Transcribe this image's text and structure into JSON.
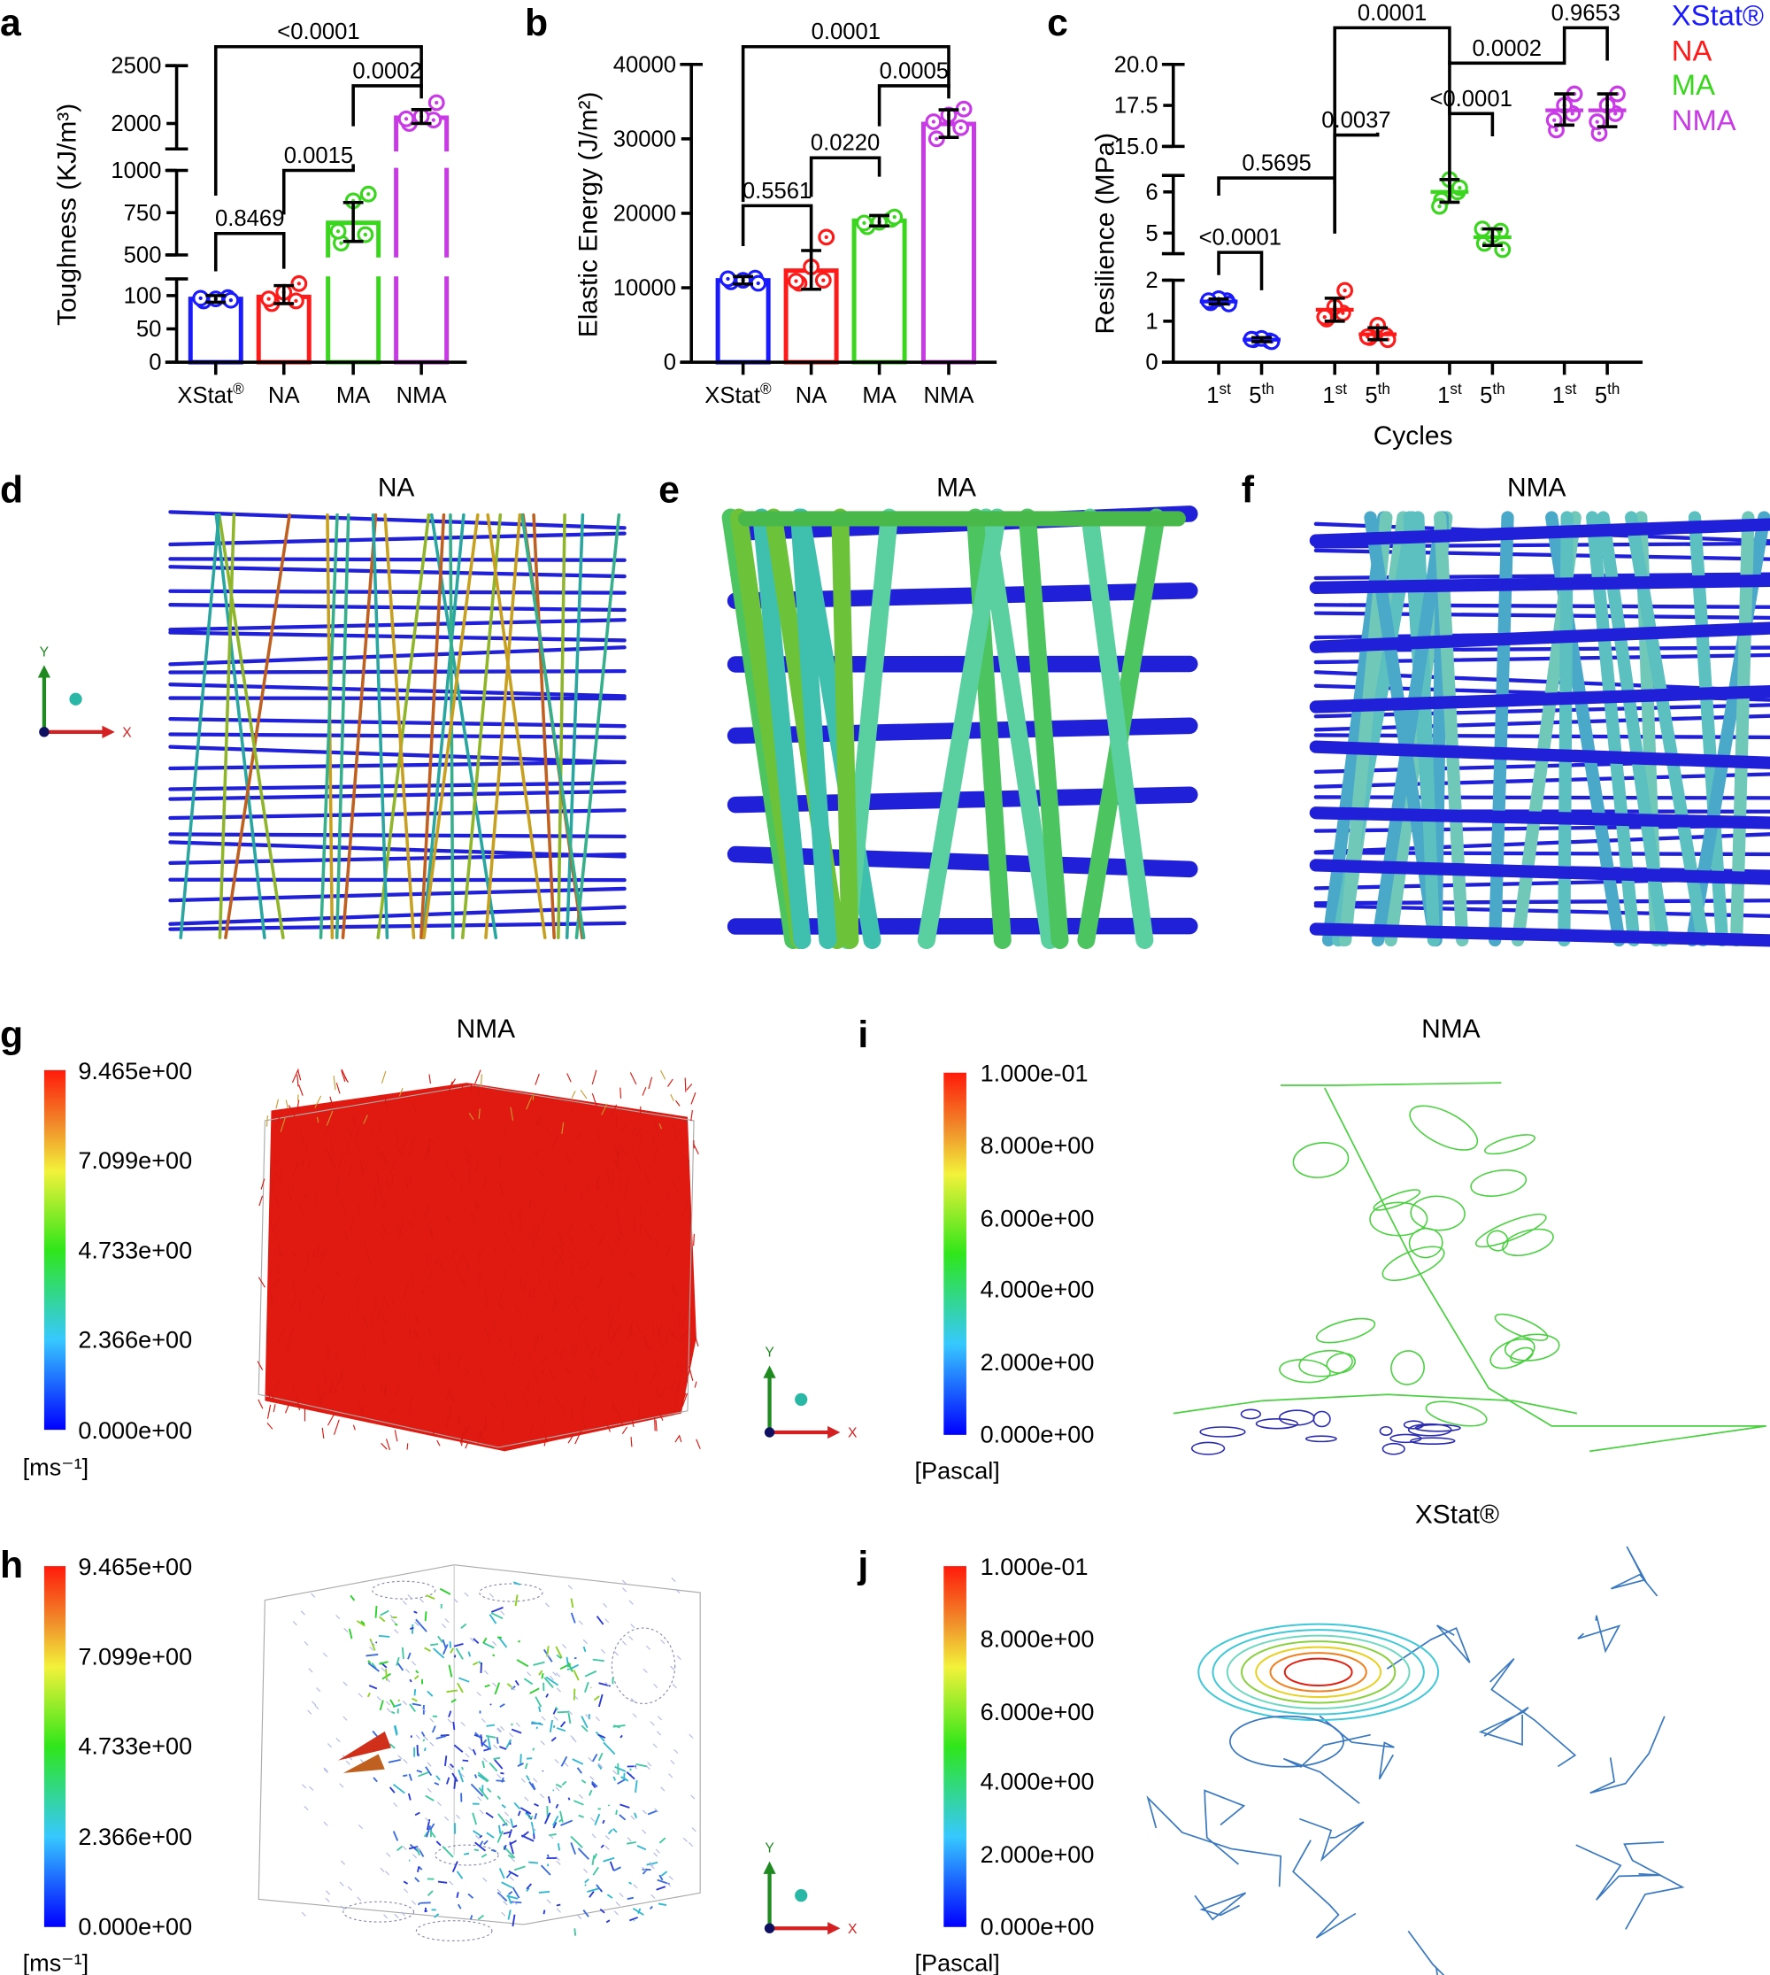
{
  "panel_labels": [
    "a",
    "b",
    "c",
    "d",
    "e",
    "f",
    "g",
    "h",
    "i",
    "j"
  ],
  "colors": {
    "XStat": "#1a1aff",
    "NA": "#ff1a1a",
    "MA": "#3ad61e",
    "NMA": "#c93ae6"
  },
  "legend": [
    {
      "label": "XStat®",
      "color": "#1a1aff"
    },
    {
      "label": "NA",
      "color": "#ff1a1a"
    },
    {
      "label": "MA",
      "color": "#3ad61e"
    },
    {
      "label": "NMA",
      "color": "#c93ae6"
    }
  ],
  "chart_data": [
    {
      "panel": "a",
      "type": "bar",
      "ylabel": "Toughness (KJ/m³)",
      "xlabel": "",
      "categories": [
        "XStat®",
        "NA",
        "MA",
        "NMA"
      ],
      "values": [
        95,
        98,
        690,
        2050
      ],
      "error_low": [
        90,
        88,
        580,
        2000
      ],
      "error_high": [
        100,
        115,
        810,
        2120
      ],
      "points": [
        [
          92,
          97,
          95,
          93,
          96
        ],
        [
          88,
          92,
          105,
          118,
          95
        ],
        [
          570,
          620,
          820,
          860,
          640
        ],
        [
          2000,
          2030,
          2060,
          2180,
          2040
        ]
      ],
      "y_segments": [
        [
          0,
          125
        ],
        [
          500,
          1000
        ],
        [
          1780,
          2500
        ]
      ],
      "y_ticks": [
        0,
        50,
        100,
        500,
        750,
        1000,
        2000,
        2500
      ],
      "y_tick_labels": [
        "0",
        "50",
        "100",
        "500",
        "750",
        "1000",
        "2000",
        "2500"
      ],
      "comparisons": [
        {
          "from": 0,
          "to": 3,
          "p": "<0.0001"
        },
        {
          "from": 2,
          "to": 3,
          "p": "0.0002"
        },
        {
          "from": 1,
          "to": 2,
          "p": "0.0015"
        },
        {
          "from": 0,
          "to": 1,
          "p": "0.8469"
        }
      ]
    },
    {
      "panel": "b",
      "type": "bar",
      "ylabel": "Elastic Energy (J/m²)",
      "xlabel": "",
      "categories": [
        "XStat®",
        "NA",
        "MA",
        "NMA"
      ],
      "values": [
        11000,
        12300,
        19000,
        32000
      ],
      "error_low": [
        10500,
        9800,
        18300,
        30200
      ],
      "error_high": [
        11500,
        15000,
        19700,
        33900
      ],
      "points": [
        [
          10800,
          11300,
          11000,
          10600,
          11200
        ],
        [
          10600,
          11000,
          12800,
          16800,
          10900
        ],
        [
          18200,
          19200,
          18800,
          19500,
          18700
        ],
        [
          30000,
          31500,
          33200,
          34000,
          32300
        ]
      ],
      "y_segments": [
        [
          0,
          40000
        ]
      ],
      "y_ticks": [
        0,
        10000,
        20000,
        30000,
        40000
      ],
      "y_tick_labels": [
        "0",
        "10000",
        "20000",
        "30000",
        "40000"
      ],
      "comparisons": [
        {
          "from": 0,
          "to": 3,
          "p": "0.0001"
        },
        {
          "from": 2,
          "to": 3,
          "p": "0.0005"
        },
        {
          "from": 1,
          "to": 2,
          "p": "0.0220"
        },
        {
          "from": 0,
          "to": 1,
          "p": "0.5561"
        }
      ]
    },
    {
      "panel": "c",
      "type": "scatter",
      "ylabel": "Resilience (MPa)",
      "xlabel": "Cycles",
      "categories": [
        {
          "base": "1",
          "sup": "st",
          "group": "XStat"
        },
        {
          "base": "5",
          "sup": "th",
          "group": "XStat"
        },
        {
          "base": "1",
          "sup": "st",
          "group": "NA"
        },
        {
          "base": "5",
          "sup": "th",
          "group": "NA"
        },
        {
          "base": "1",
          "sup": "st",
          "group": "MA"
        },
        {
          "base": "5",
          "sup": "th",
          "group": "MA"
        },
        {
          "base": "1",
          "sup": "st",
          "group": "NMA"
        },
        {
          "base": "5",
          "sup": "th",
          "group": "NMA"
        }
      ],
      "values": [
        1.48,
        0.55,
        1.28,
        0.68,
        6.0,
        4.9,
        17.2,
        17.2
      ],
      "error_low": [
        1.42,
        0.5,
        1.0,
        0.55,
        5.75,
        4.7,
        16.3,
        16.2
      ],
      "error_high": [
        1.54,
        0.6,
        1.56,
        0.84,
        6.3,
        5.1,
        18.2,
        18.2
      ],
      "points": [
        [
          1.45,
          1.5,
          1.55,
          1.42,
          1.5
        ],
        [
          0.55,
          0.52,
          0.58,
          0.5,
          0.56
        ],
        [
          1.05,
          1.2,
          1.35,
          1.75,
          1.1
        ],
        [
          0.6,
          0.65,
          0.9,
          0.55,
          0.62
        ],
        [
          5.8,
          6.0,
          6.3,
          6.1,
          5.65
        ],
        [
          4.75,
          5.05,
          4.95,
          4.6,
          5.1
        ],
        [
          16.0,
          17.0,
          17.5,
          18.2,
          16.6
        ],
        [
          15.8,
          17.0,
          17.5,
          18.2,
          16.5
        ]
      ],
      "y_segments": [
        [
          0,
          2
        ],
        [
          4.5,
          6.4
        ],
        [
          15,
          20
        ]
      ],
      "y_ticks": [
        0,
        1,
        2,
        5,
        6,
        15,
        17.5,
        20
      ],
      "y_tick_labels": [
        "0",
        "1",
        "2",
        "5",
        "6",
        "15.0",
        "17.5",
        "20.0"
      ],
      "comparisons": [
        {
          "from": 2,
          "to": 4,
          "p": "0.0001"
        },
        {
          "from": 6,
          "to": 7,
          "p": "0.9653"
        },
        {
          "from": 4,
          "to": 6,
          "p": "0.0002"
        },
        {
          "from": 4,
          "to": 5,
          "p": "<0.0001"
        },
        {
          "from": 2,
          "to": 3,
          "p": "0.0037"
        },
        {
          "from": 0,
          "to": 2,
          "p": "0.5695"
        },
        {
          "from": 0,
          "to": 1,
          "p": "<0.0001"
        }
      ]
    }
  ],
  "simulation": {
    "d_title": "NA",
    "e_title": "MA",
    "f_title": "NMA",
    "g_title": "NMA",
    "i_title": "NMA",
    "j_title": "XStat®",
    "axis_x": "X",
    "axis_y": "Y",
    "velocity_colorbar": [
      "9.465e+00",
      "7.099e+00",
      "4.733e+00",
      "2.366e+00",
      "0.000e+00"
    ],
    "velocity_unit": "[ms⁻¹]",
    "pressure_colorbar": [
      "1.000e-01",
      "8.000e+00",
      "6.000e+00",
      "4.000e+00",
      "2.000e+00",
      "0.000e+00"
    ],
    "pressure_unit": "[Pascal]"
  }
}
